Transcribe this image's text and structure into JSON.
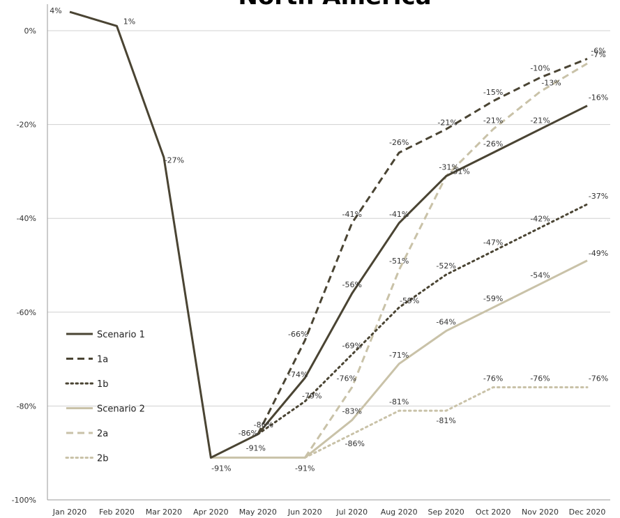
{
  "chart_data": {
    "type": "line",
    "title": "North America",
    "xlabel": "",
    "ylabel": "",
    "categories": [
      "Jan 2020",
      "Feb 2020",
      "Mar 2020",
      "Apr 2020",
      "May 2020",
      "Jun 2020",
      "Jul 2020",
      "Aug 2020",
      "Sep 2020",
      "Oct 2020",
      "Nov 2020",
      "Dec 2020"
    ],
    "y_ticks": [
      "0%",
      "-20%",
      "-40%",
      "-60%",
      "-80%",
      "-100%"
    ],
    "ylim": [
      -100,
      4
    ],
    "grid": "horizontal",
    "legend_position": "left",
    "series": [
      {
        "name": "Scenario 1",
        "color": "#4a4433",
        "dash": "solid",
        "values": [
          4,
          1,
          -27,
          -91,
          -86,
          -74,
          -56,
          -41,
          -31,
          -26,
          -21,
          -16
        ],
        "labels": [
          "4%",
          "1%",
          "-27%",
          "-91%",
          "-86%",
          "-74%",
          "-56%",
          "-41%",
          "-31%",
          "-26%",
          "-21%",
          "-16%"
        ]
      },
      {
        "name": "1a",
        "color": "#4a4433",
        "dash": "dashed",
        "values": [
          null,
          null,
          null,
          null,
          -86,
          -66,
          -41,
          -26,
          -21,
          -15,
          -10,
          -6
        ],
        "labels": [
          "",
          "",
          "",
          "",
          "-86%",
          "-66%",
          "-41%",
          "-26%",
          "-21%",
          "-15%",
          "-10%",
          "-6%"
        ]
      },
      {
        "name": "1b",
        "color": "#4a4433",
        "dash": "dotted",
        "values": [
          null,
          null,
          null,
          null,
          -86,
          -79,
          -69,
          -59,
          -52,
          -47,
          -42,
          -37
        ],
        "labels": [
          "",
          "",
          "",
          "",
          "",
          "-79%",
          "-69%",
          "-59%",
          "-52%",
          "-47%",
          "-42%",
          "-37%"
        ]
      },
      {
        "name": "Scenario 2",
        "color": "#c9c2a8",
        "dash": "solid",
        "values": [
          null,
          null,
          null,
          -91,
          -91,
          -91,
          -83,
          -71,
          -64,
          -59,
          -54,
          -49
        ],
        "labels": [
          "",
          "",
          "",
          "",
          "-91%",
          "-91%",
          "-83%",
          "-71%",
          "-64%",
          "-59%",
          "-54%",
          "-49%"
        ]
      },
      {
        "name": "2a",
        "color": "#c9c2a8",
        "dash": "dashed",
        "values": [
          null,
          null,
          null,
          null,
          null,
          -91,
          -76,
          -51,
          -31,
          -21,
          -13,
          -7
        ],
        "labels": [
          "",
          "",
          "",
          "",
          "",
          "",
          "-76%",
          "-51%",
          "-31%",
          "-21%",
          "-13%",
          "-7%"
        ]
      },
      {
        "name": "2b",
        "color": "#c9c2a8",
        "dash": "dotted",
        "values": [
          null,
          null,
          null,
          null,
          null,
          -91,
          -86,
          -81,
          -81,
          -76,
          -76,
          -76
        ],
        "labels": [
          "",
          "",
          "",
          "",
          "",
          "",
          "-86%",
          "-81%",
          "-81%",
          "-76%",
          "-76%",
          "-76%"
        ]
      }
    ]
  }
}
